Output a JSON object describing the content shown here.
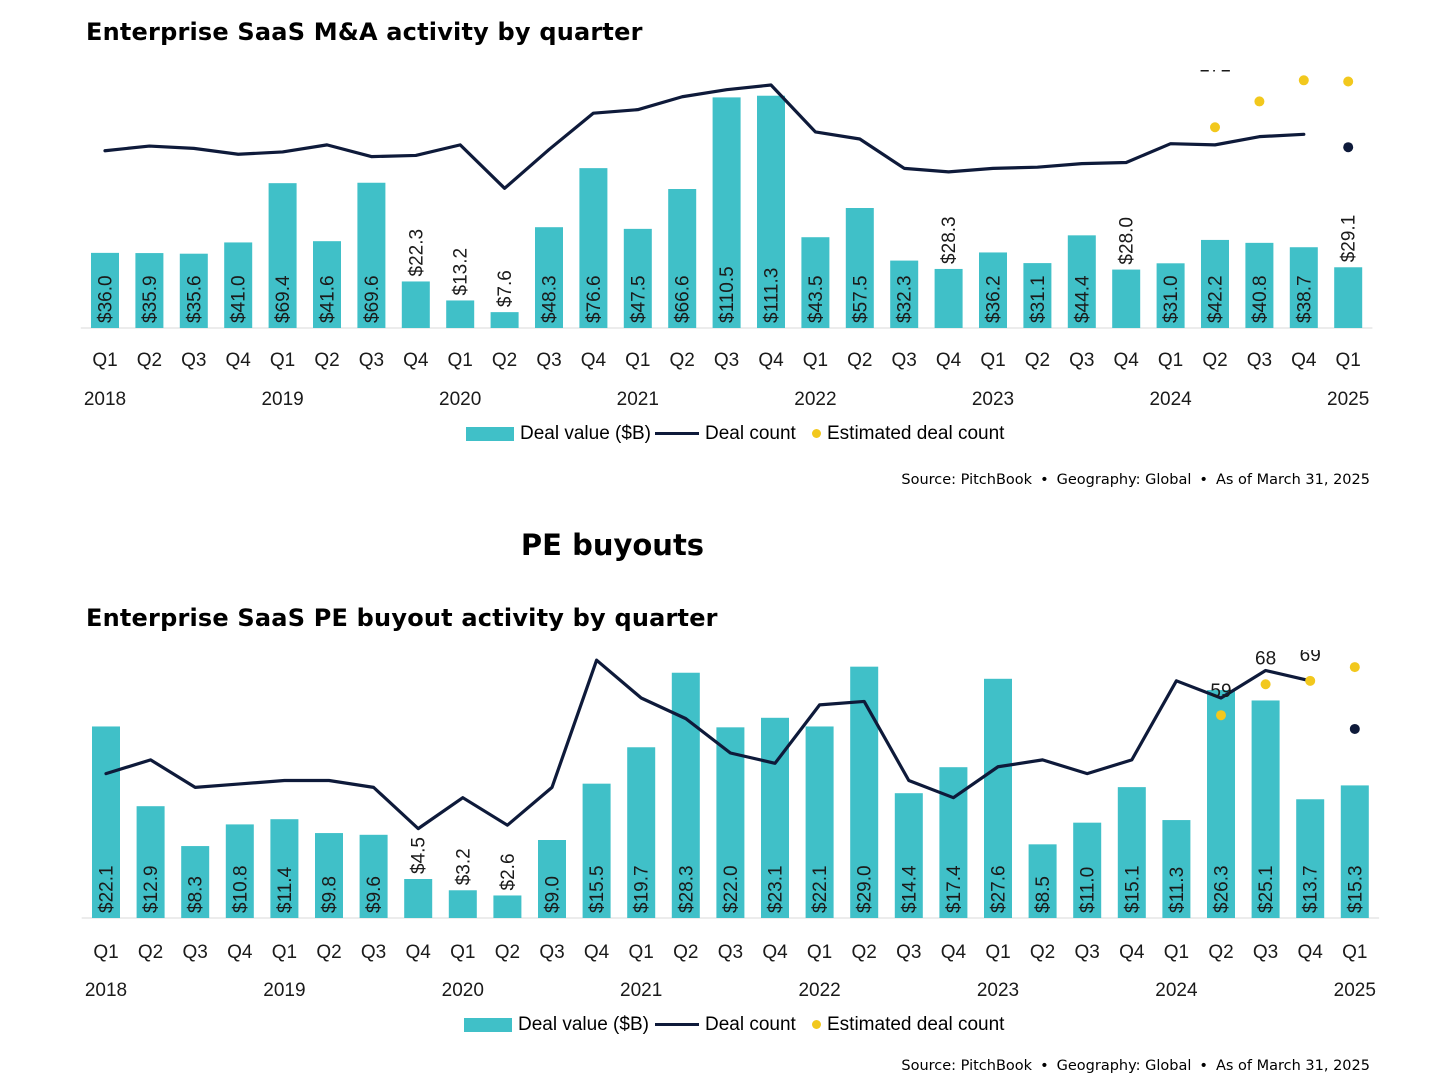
{
  "section_heading": "PE buyouts",
  "colors": {
    "bar": "#40C0C8",
    "line": "#0E1A3A",
    "estimate": "#F2C81D"
  },
  "chart_data": [
    {
      "type": "bar",
      "title": "Enterprise SaaS M&A activity by quarter",
      "quarters": [
        "Q1",
        "Q2",
        "Q3",
        "Q4",
        "Q1",
        "Q2",
        "Q3",
        "Q4",
        "Q1",
        "Q2",
        "Q3",
        "Q4",
        "Q1",
        "Q2",
        "Q3",
        "Q4",
        "Q1",
        "Q2",
        "Q3",
        "Q4",
        "Q1",
        "Q2",
        "Q3",
        "Q4",
        "Q1",
        "Q2",
        "Q3",
        "Q4",
        "Q1"
      ],
      "years": [
        {
          "label": "2018",
          "index": 0
        },
        {
          "label": "2019",
          "index": 4
        },
        {
          "label": "2020",
          "index": 8
        },
        {
          "label": "2021",
          "index": 12
        },
        {
          "label": "2022",
          "index": 16
        },
        {
          "label": "2023",
          "index": 20
        },
        {
          "label": "2024",
          "index": 24
        },
        {
          "label": "2025",
          "index": 28
        }
      ],
      "series": [
        {
          "name": "Deal value ($B)",
          "type": "bar",
          "values": [
            36.0,
            35.9,
            35.6,
            41.0,
            69.4,
            41.6,
            69.6,
            22.3,
            13.2,
            7.6,
            48.3,
            76.6,
            47.5,
            66.6,
            110.5,
            111.3,
            43.5,
            57.5,
            32.3,
            28.3,
            36.2,
            31.1,
            44.4,
            28.0,
            31.0,
            42.2,
            40.8,
            38.7,
            29.1
          ],
          "labels": [
            "$36.0",
            "$35.9",
            "$35.6",
            "$41.0",
            "$69.4",
            "$41.6",
            "$69.6",
            "$22.3",
            "$13.2",
            "$7.6",
            "$48.3",
            "$76.6",
            "$47.5",
            "$66.6",
            "$110.5",
            "$111.3",
            "$43.5",
            "$57.5",
            "$32.3",
            "$28.3",
            "$36.2",
            "$31.1",
            "$44.4",
            "$28.0",
            "$31.0",
            "$42.2",
            "$40.8",
            "$38.7",
            "$29.1"
          ],
          "ylim": [
            0,
            115
          ]
        },
        {
          "name": "Deal count",
          "type": "line",
          "values": [
            151,
            155,
            153,
            148,
            150,
            156,
            146,
            147,
            156,
            119,
            152,
            183,
            186,
            197,
            203,
            207,
            167,
            161,
            136,
            133,
            136,
            137,
            140,
            141,
            157,
            156,
            163,
            165,
            154
          ],
          "ylim": [
            0,
            230
          ]
        },
        {
          "name": "Estimated deal count",
          "type": "scatter",
          "points": [
            {
              "index": 25,
              "value": 171
            },
            {
              "index": 26,
              "value": 193
            },
            {
              "index": 27,
              "value": 211
            },
            {
              "index": 28,
              "value": 210
            }
          ]
        }
      ],
      "legend": {
        "position": "bottom"
      },
      "source": {
        "text": "Source: PitchBook",
        "geography": "Geography: Global",
        "asof": "As of March 31, 2025",
        "separator": "•"
      }
    },
    {
      "type": "bar",
      "title": "Enterprise SaaS PE buyout activity by quarter",
      "quarters": [
        "Q1",
        "Q2",
        "Q3",
        "Q4",
        "Q1",
        "Q2",
        "Q3",
        "Q4",
        "Q1",
        "Q2",
        "Q3",
        "Q4",
        "Q1",
        "Q2",
        "Q3",
        "Q4",
        "Q1",
        "Q2",
        "Q3",
        "Q4",
        "Q1",
        "Q2",
        "Q3",
        "Q4",
        "Q1",
        "Q2",
        "Q3",
        "Q4",
        "Q1"
      ],
      "years": [
        {
          "label": "2018",
          "index": 0
        },
        {
          "label": "2019",
          "index": 4
        },
        {
          "label": "2020",
          "index": 8
        },
        {
          "label": "2021",
          "index": 12
        },
        {
          "label": "2022",
          "index": 16
        },
        {
          "label": "2023",
          "index": 20
        },
        {
          "label": "2024",
          "index": 24
        },
        {
          "label": "2025",
          "index": 28
        }
      ],
      "series": [
        {
          "name": "Deal value ($B)",
          "type": "bar",
          "values": [
            22.1,
            12.9,
            8.3,
            10.8,
            11.4,
            9.8,
            9.6,
            4.5,
            3.2,
            2.6,
            9.0,
            15.5,
            19.7,
            28.3,
            22.0,
            23.1,
            22.1,
            29.0,
            14.4,
            17.4,
            27.6,
            8.5,
            11.0,
            15.1,
            11.3,
            26.3,
            25.1,
            13.7,
            15.3
          ],
          "labels": [
            "$22.1",
            "$12.9",
            "$8.3",
            "$10.8",
            "$11.4",
            "$9.8",
            "$9.6",
            "$4.5",
            "$3.2",
            "$2.6",
            "$9.0",
            "$15.5",
            "$19.7",
            "$28.3",
            "$22.0",
            "$23.1",
            "$22.1",
            "$29.0",
            "$14.4",
            "$17.4",
            "$27.6",
            "$8.5",
            "$11.0",
            "$15.1",
            "$11.3",
            "$26.3",
            "$25.1",
            "$13.7",
            "$15.3"
          ],
          "ylim": [
            0,
            30
          ]
        },
        {
          "name": "Deal count",
          "type": "line",
          "values": [
            42,
            46,
            38,
            39,
            40,
            40,
            38,
            26,
            35,
            27,
            38,
            75,
            64,
            58,
            48,
            45,
            62,
            63,
            40,
            35,
            44,
            46,
            42,
            46,
            69,
            64,
            72,
            69,
            55
          ],
          "ylim": [
            0,
            80
          ]
        },
        {
          "name": "Estimated deal count",
          "type": "scatter",
          "points": [
            {
              "index": 25,
              "value": 59
            },
            {
              "index": 26,
              "value": 68
            },
            {
              "index": 27,
              "value": 69
            },
            {
              "index": 28,
              "value": 73
            }
          ]
        }
      ],
      "legend": {
        "position": "bottom"
      },
      "source": {
        "text": "Source: PitchBook",
        "geography": "Geography: Global",
        "asof": "As of March 31, 2025",
        "separator": "•"
      }
    }
  ]
}
